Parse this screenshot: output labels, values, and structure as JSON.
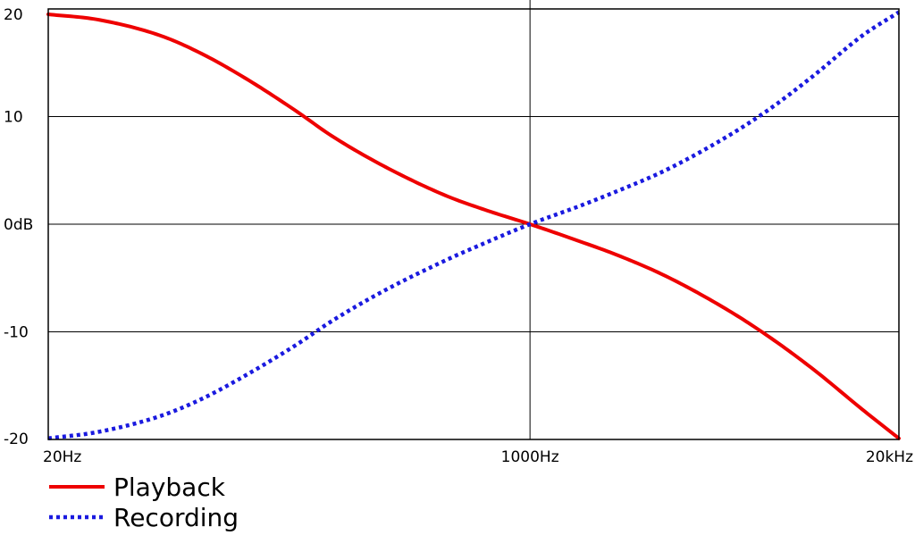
{
  "chart_data": {
    "type": "line",
    "title": "",
    "xlabel": "",
    "ylabel": "",
    "x_scale": "log",
    "x_ticks": [
      {
        "value": 20,
        "label": "20Hz"
      },
      {
        "value": 1000,
        "label": "1000Hz"
      },
      {
        "value": 20000,
        "label": "20kHz"
      }
    ],
    "y_ticks": [
      {
        "value": 20,
        "label": "20"
      },
      {
        "value": 10,
        "label": "10"
      },
      {
        "value": 0,
        "label": "0dB"
      },
      {
        "value": -10,
        "label": "-10"
      },
      {
        "value": -20,
        "label": "-20"
      }
    ],
    "xlim": [
      20,
      20000
    ],
    "ylim": [
      -20,
      20
    ],
    "grid": true,
    "legend_position": "bottom-left",
    "series": [
      {
        "name": "Playback",
        "color": "#ee0000",
        "style": "solid",
        "x": [
          20,
          30,
          50,
          70,
          100,
          150,
          200,
          300,
          500,
          700,
          1000,
          1500,
          2000,
          3000,
          5000,
          7000,
          10000,
          15000,
          20000
        ],
        "y": [
          19.5,
          19.0,
          17.5,
          15.8,
          13.5,
          10.5,
          8.2,
          5.5,
          2.7,
          1.3,
          0.0,
          -1.6,
          -2.8,
          -4.8,
          -8.0,
          -10.5,
          -13.5,
          -17.3,
          -19.9
        ]
      },
      {
        "name": "Recording",
        "color": "#1a1adf",
        "style": "dotted",
        "x": [
          20,
          30,
          50,
          70,
          100,
          150,
          200,
          300,
          500,
          700,
          1000,
          1500,
          2000,
          3000,
          5000,
          7000,
          10000,
          15000,
          20000
        ],
        "y": [
          -19.9,
          -19.3,
          -17.8,
          -16.2,
          -14.0,
          -11.2,
          -9.0,
          -6.3,
          -3.4,
          -1.7,
          0.0,
          1.7,
          3.0,
          5.0,
          8.2,
          10.7,
          13.8,
          17.6,
          19.7
        ]
      }
    ]
  }
}
